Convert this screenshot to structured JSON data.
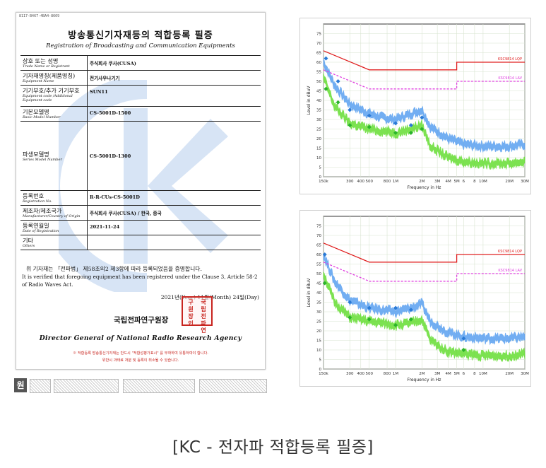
{
  "certificate": {
    "doc_no": "8117-B467-4BA4-8669",
    "title_ko": "방송통신기자재등의 적합등록 필증",
    "title_en": "Registration of Broadcasting and Communication Equipments",
    "rows": [
      {
        "label_ko": "상호 또는 성명",
        "label_en": "Trade Name or Registrant",
        "value": "주식회사 쿠사(CUSA)"
      },
      {
        "label_ko": "기자재명칭(제품명칭)",
        "label_en": "Equipment Name",
        "value": "전기사우나기기"
      },
      {
        "label_ko": "기기부호/추가 기기부호",
        "label_en": "Equipment code /Additional Equipment code",
        "value": "SUN11"
      },
      {
        "label_ko": "기본모델명",
        "label_en": "Basic Model Number",
        "value": "CS-5001D-1500"
      },
      {
        "label_ko": "파생모델명",
        "label_en": "Series Model Number",
        "value": "CS-5001D-1300"
      },
      {
        "label_ko": "등록번호",
        "label_en": "Registration No.",
        "value": "R-R-CUs-CS-5001D"
      },
      {
        "label_ko": "제조자/제조국가",
        "label_en": "Manufacturer/Country of Origin",
        "value": "주식회사 쿠사(CUSA) / 한국, 중국"
      },
      {
        "label_ko": "등록연월일",
        "label_en": "Date of Registration",
        "value": "2021-11-24"
      },
      {
        "label_ko": "기타",
        "label_en": "Others",
        "value": ""
      }
    ],
    "body_ko": "위 기자재는 「전파법」 제58조의2 제3항에 따라 등록되었음을 증명합니다.",
    "body_en": "It is verified that foregoing equipment has been registered under the Clause 3, Article 58-2 of Radio Waves Act.",
    "date": "2021년(Year) 11월(Month) 24일(Day)",
    "institution": "국립전파연구원장",
    "seal_text": "국립전파연구원장인",
    "director": "Director General of National Radio Research Agency",
    "note1": "※ 적합등록 방송통신기자재는 반드시 \"적합성평가표시\" 를 부착하여 유통하여야 합니다.",
    "note2": "위반시 과태료 처분 및 등록이 취소될 수 있습니다."
  },
  "strip": {
    "label": "원"
  },
  "charts": {
    "ylabel": "Level in dBuV",
    "xlabel": "Frequency in Hz",
    "limit_qp_label": "KSC9814 LQP",
    "limit_av_label": "KSC9814 LAV",
    "limit_color": "#e02020",
    "limit_av_color": "#e040e0",
    "trace_colors": [
      "#5aa0f0",
      "#66dd33"
    ]
  },
  "chart_data": [
    {
      "type": "line",
      "title": "",
      "xlabel": "Frequency in Hz",
      "ylabel": "Level in dBuV",
      "x_scale": "log",
      "xlim": [
        150000,
        30000000
      ],
      "ylim": [
        0,
        80
      ],
      "x_ticks": [
        "150k",
        "300",
        "400",
        "500",
        "800",
        "1M",
        "2M",
        "3M",
        "4M",
        "5M",
        "6",
        "8",
        "10M",
        "20M",
        "30M"
      ],
      "y_ticks": [
        0,
        5,
        10,
        15,
        20,
        25,
        30,
        35,
        40,
        45,
        50,
        55,
        60,
        65,
        70,
        75
      ],
      "grid": true,
      "series": [
        {
          "name": "KSC9814 LQP",
          "x": [
            150000,
            500000,
            500000,
            5000000,
            5000000,
            30000000
          ],
          "values": [
            66,
            56,
            56,
            56,
            60,
            60
          ]
        },
        {
          "name": "KSC9814 LAV",
          "x": [
            150000,
            500000,
            500000,
            5000000,
            5000000,
            30000000
          ],
          "values": [
            56,
            46,
            46,
            46,
            50,
            50
          ]
        },
        {
          "name": "",
          "x": [
            150000,
            200000,
            300000,
            500000,
            700000,
            1000000,
            1500000,
            2000000,
            2500000,
            4000000,
            6000000,
            10000000,
            20000000,
            30000000
          ],
          "values": [
            60,
            48,
            38,
            33,
            31,
            30,
            33,
            35,
            26,
            20,
            17,
            16,
            16,
            17
          ]
        },
        {
          "name": "",
          "x": [
            150000,
            200000,
            300000,
            500000,
            700000,
            1000000,
            1500000,
            2000000,
            2500000,
            4000000,
            6000000,
            10000000,
            20000000,
            30000000
          ],
          "values": [
            52,
            37,
            28,
            25,
            24,
            23,
            25,
            27,
            16,
            10,
            8,
            7,
            7,
            8
          ]
        }
      ],
      "markers_qp": {
        "x": [
          160000,
          220000,
          300000,
          500000,
          1000000,
          1500000,
          2000000
        ],
        "values": [
          62,
          50,
          35,
          32,
          28,
          27,
          31
        ]
      },
      "markers_av": {
        "x": [
          160000,
          220000,
          300000,
          500000,
          1000000,
          1500000,
          2000000
        ],
        "values": [
          46,
          39,
          27,
          26,
          23,
          23,
          25
        ]
      }
    },
    {
      "type": "line",
      "title": "",
      "xlabel": "Frequency in Hz",
      "ylabel": "Level in dBuV",
      "x_scale": "log",
      "xlim": [
        150000,
        30000000
      ],
      "ylim": [
        0,
        80
      ],
      "x_ticks": [
        "150k",
        "300",
        "400",
        "500",
        "800",
        "1M",
        "2M",
        "3M",
        "4M",
        "5M",
        "6",
        "8",
        "10M",
        "20M",
        "30M"
      ],
      "y_ticks": [
        0,
        5,
        10,
        15,
        20,
        25,
        30,
        35,
        40,
        45,
        50,
        55,
        60,
        65,
        70,
        75
      ],
      "grid": true,
      "series": [
        {
          "name": "KSC9814 LQP",
          "x": [
            150000,
            500000,
            500000,
            5000000,
            5000000,
            30000000
          ],
          "values": [
            66,
            56,
            56,
            56,
            60,
            60
          ]
        },
        {
          "name": "KSC9814 LAV",
          "x": [
            150000,
            500000,
            500000,
            5000000,
            5000000,
            30000000
          ],
          "values": [
            56,
            46,
            46,
            46,
            50,
            50
          ]
        },
        {
          "name": "",
          "x": [
            150000,
            200000,
            300000,
            500000,
            700000,
            1000000,
            1500000,
            2000000,
            2500000,
            4000000,
            6000000,
            10000000,
            20000000,
            30000000
          ],
          "values": [
            60,
            46,
            36,
            32,
            31,
            30,
            32,
            34,
            25,
            19,
            17,
            16,
            16,
            17
          ]
        },
        {
          "name": "",
          "x": [
            150000,
            200000,
            300000,
            500000,
            700000,
            1000000,
            1500000,
            2000000,
            2500000,
            4000000,
            6000000,
            10000000,
            20000000,
            30000000
          ],
          "values": [
            50,
            35,
            27,
            25,
            24,
            23,
            24,
            26,
            15,
            9,
            8,
            7,
            7,
            8
          ]
        }
      ],
      "markers_qp": {
        "x": [
          155000,
          300000,
          500000,
          1000000,
          1500000,
          6000000
        ],
        "values": [
          60,
          35,
          32,
          32,
          31,
          16
        ]
      },
      "markers_av": {
        "x": [
          155000,
          300000,
          500000,
          1000000,
          1500000,
          6000000
        ],
        "values": [
          45,
          27,
          26,
          23,
          26,
          10
        ]
      }
    }
  ],
  "caption": "[KC - 전자파 적합등록 필증]"
}
